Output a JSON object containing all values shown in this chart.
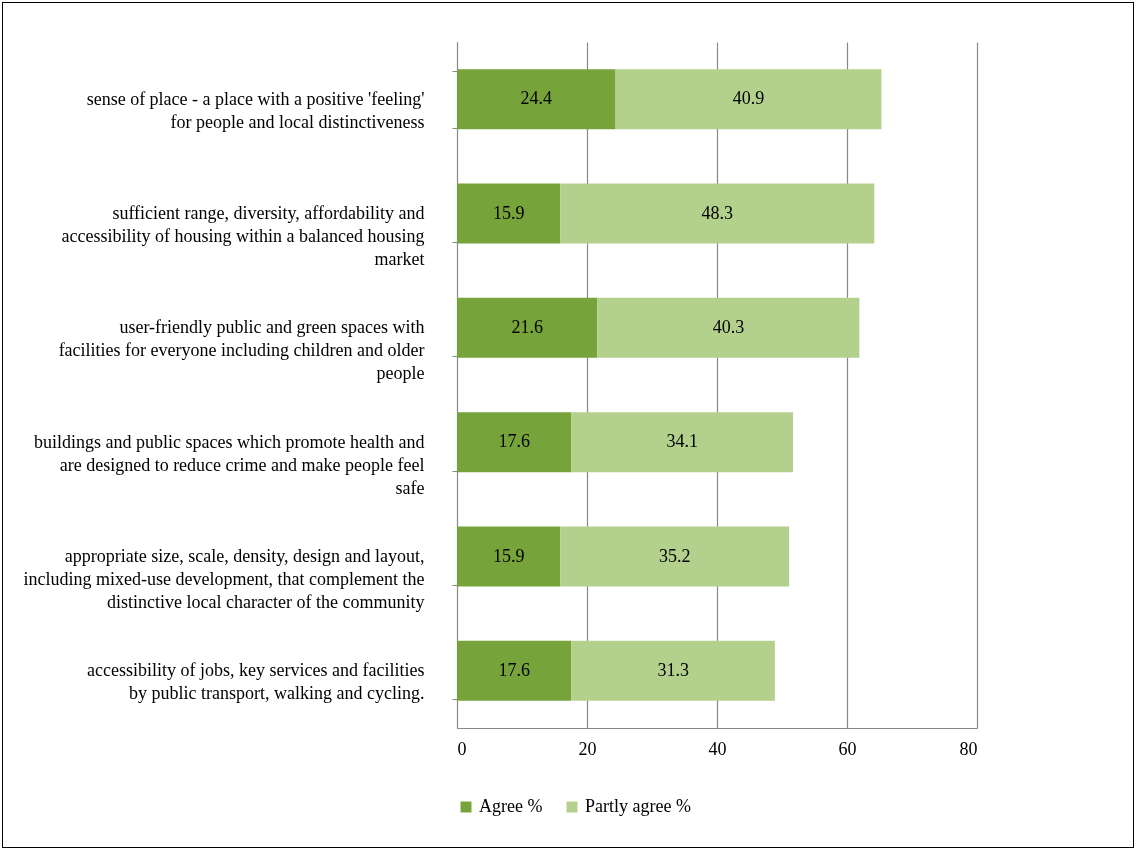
{
  "chart_data": {
    "type": "bar",
    "orientation": "horizontal",
    "stacked": true,
    "categories": [
      "sense of place - a place with a positive 'feeling' for people and local distinctiveness",
      "sufficient range, diversity, affordability and accessibility of housing within a balanced housing market",
      "user-friendly public and green spaces with facilities for everyone including children and older people",
      "buildings and public spaces which promote health and are designed to reduce crime and make people feel safe",
      "appropriate size, scale, density, design and layout, including mixed-use development, that complement the distinctive local character of the community",
      "accessibility of jobs, key services and facilities by public transport, walking and cycling."
    ],
    "series": [
      {
        "name": "Agree %",
        "color": "#77a33b",
        "values": [
          24.4,
          15.9,
          21.6,
          17.6,
          15.9,
          17.6
        ]
      },
      {
        "name": "Partly agree %",
        "color": "#b3d08c",
        "values": [
          40.9,
          48.3,
          40.3,
          34.1,
          35.2,
          31.3
        ]
      }
    ],
    "xlim": [
      0,
      80
    ],
    "xticks": [
      0,
      20,
      40,
      60,
      80
    ],
    "grid": "x",
    "legend": "bottom",
    "data_labels": true
  }
}
